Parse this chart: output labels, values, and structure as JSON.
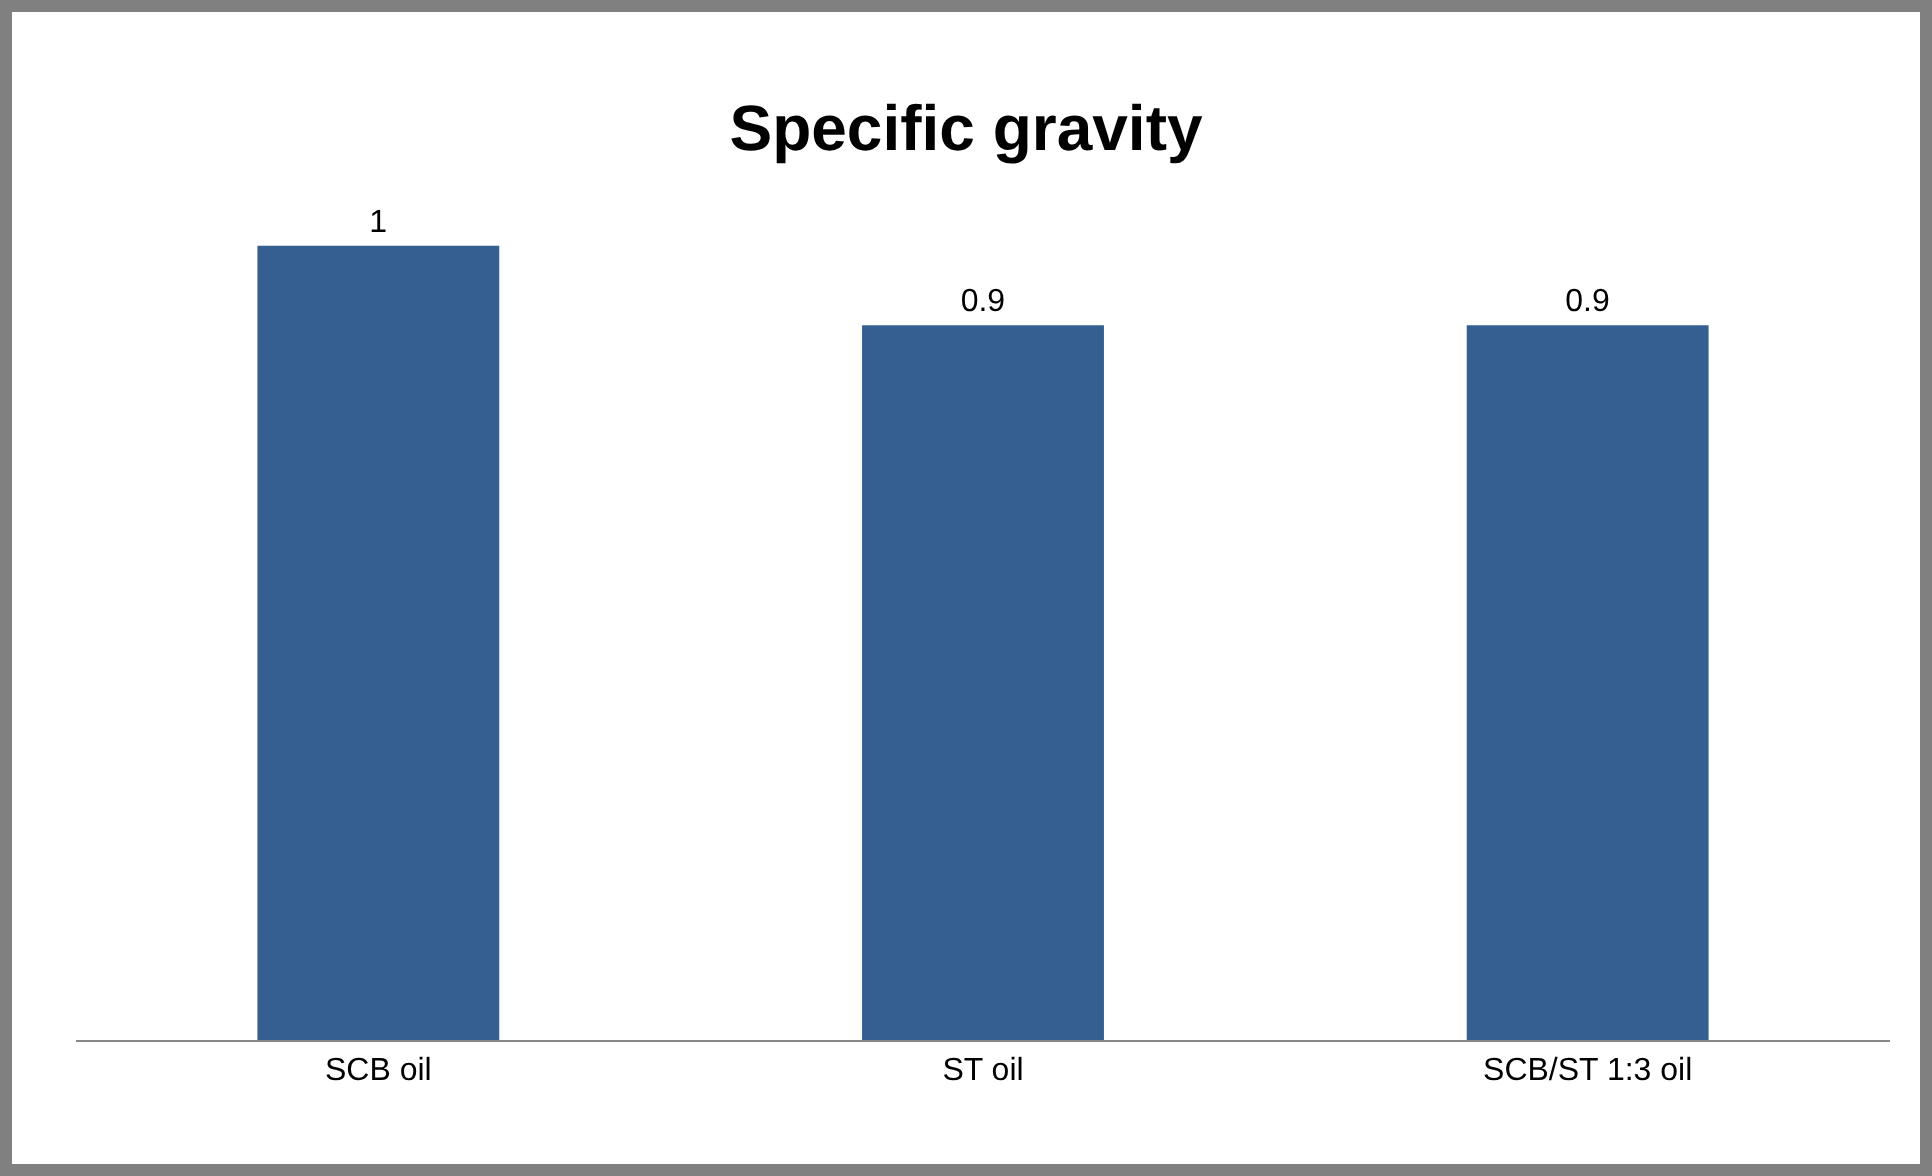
{
  "chart_data": {
    "type": "bar",
    "title": "Specific gravity",
    "categories": [
      "SCB oil",
      "ST oil",
      "SCB/ST 1:3 oil"
    ],
    "values": [
      1,
      0.9,
      0.9
    ],
    "color": "#355f91",
    "data_labels": true,
    "grid": false,
    "legend": false
  }
}
